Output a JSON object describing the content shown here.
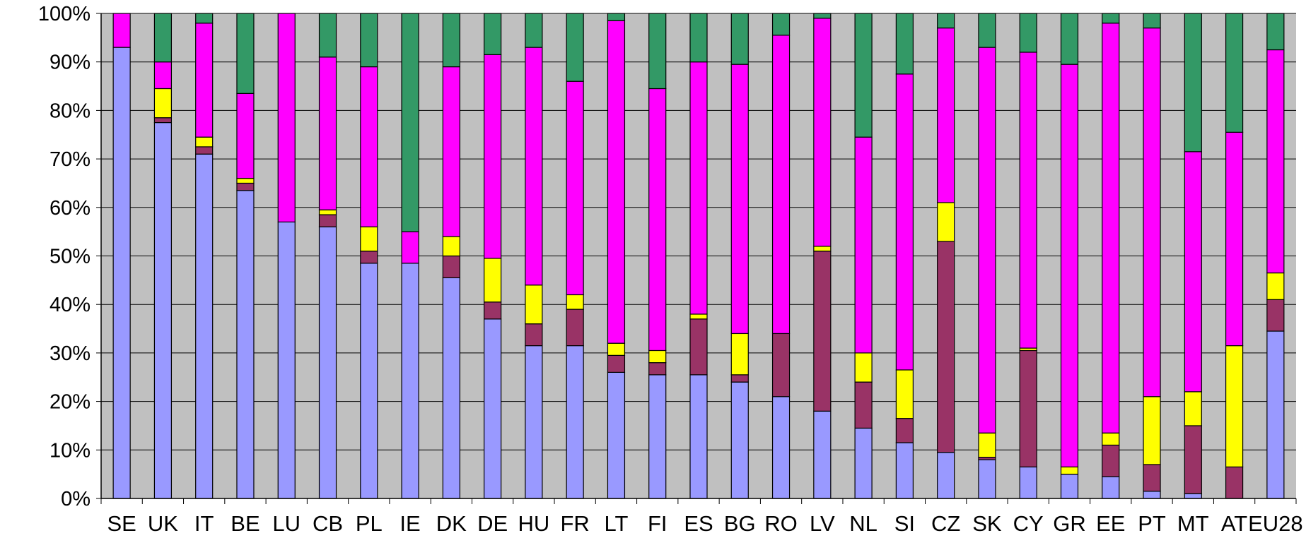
{
  "chart_data": {
    "type": "bar",
    "stacked": true,
    "normalized": true,
    "categories": [
      "SE",
      "UK",
      "IT",
      "BE",
      "LU",
      "CB",
      "PL",
      "IE",
      "DK",
      "DE",
      "HU",
      "FR",
      "LT",
      "FI",
      "ES",
      "BG",
      "RO",
      "LV",
      "NL",
      "SI",
      "CZ",
      "SK",
      "CY",
      "GR",
      "EE",
      "PT",
      "MT",
      "AT",
      "EU28"
    ],
    "series": [
      {
        "color": "#9999ff",
        "values": [
          93,
          77.5,
          71,
          63.5,
          57,
          56,
          48.5,
          48.5,
          45.5,
          37,
          31.5,
          31.5,
          26,
          25.5,
          25.5,
          24,
          21,
          18,
          14.5,
          11.5,
          9.5,
          8,
          6.5,
          5,
          4.5,
          1.5,
          1,
          0,
          34.5
        ]
      },
      {
        "color": "#993366",
        "values": [
          0,
          1,
          1.5,
          1.5,
          0,
          2.5,
          2.5,
          0,
          4.5,
          3.5,
          4.5,
          7.5,
          3.5,
          2.5,
          11.5,
          1.5,
          13,
          33,
          9.5,
          5,
          43.5,
          0.5,
          24,
          0,
          6.5,
          5.5,
          14,
          6.5,
          6.5
        ]
      },
      {
        "color": "#ffff00",
        "values": [
          0,
          6,
          2,
          1,
          0,
          1,
          5,
          0,
          4,
          9,
          8,
          3,
          2.5,
          2.5,
          1,
          8.5,
          0,
          1,
          6,
          10,
          8,
          5,
          0.5,
          1.5,
          2.5,
          14,
          7,
          25,
          5.5
        ]
      },
      {
        "color": "#ff00ff",
        "values": [
          7,
          5.5,
          23.5,
          17.5,
          43,
          31.5,
          33,
          6.5,
          35,
          42,
          49,
          44,
          66.5,
          54,
          52,
          55.5,
          61.5,
          47,
          44.5,
          61,
          36,
          79.5,
          61,
          83,
          84.5,
          76,
          49.5,
          44,
          46
        ]
      },
      {
        "color": "#339966",
        "values": [
          0,
          10,
          2,
          16.5,
          0,
          9,
          11,
          45,
          11,
          8.5,
          7,
          14,
          1.5,
          15.5,
          10,
          10.5,
          4.5,
          1,
          25.5,
          12.5,
          3,
          7,
          8,
          10.5,
          2,
          3,
          28.5,
          24.5,
          7.5
        ]
      }
    ],
    "ylim": [
      0,
      100
    ],
    "yticks": [
      "0%",
      "10%",
      "20%",
      "30%",
      "40%",
      "50%",
      "60%",
      "70%",
      "80%",
      "90%",
      "100%"
    ],
    "grid": true,
    "plot_background": "#c0c0c0"
  }
}
